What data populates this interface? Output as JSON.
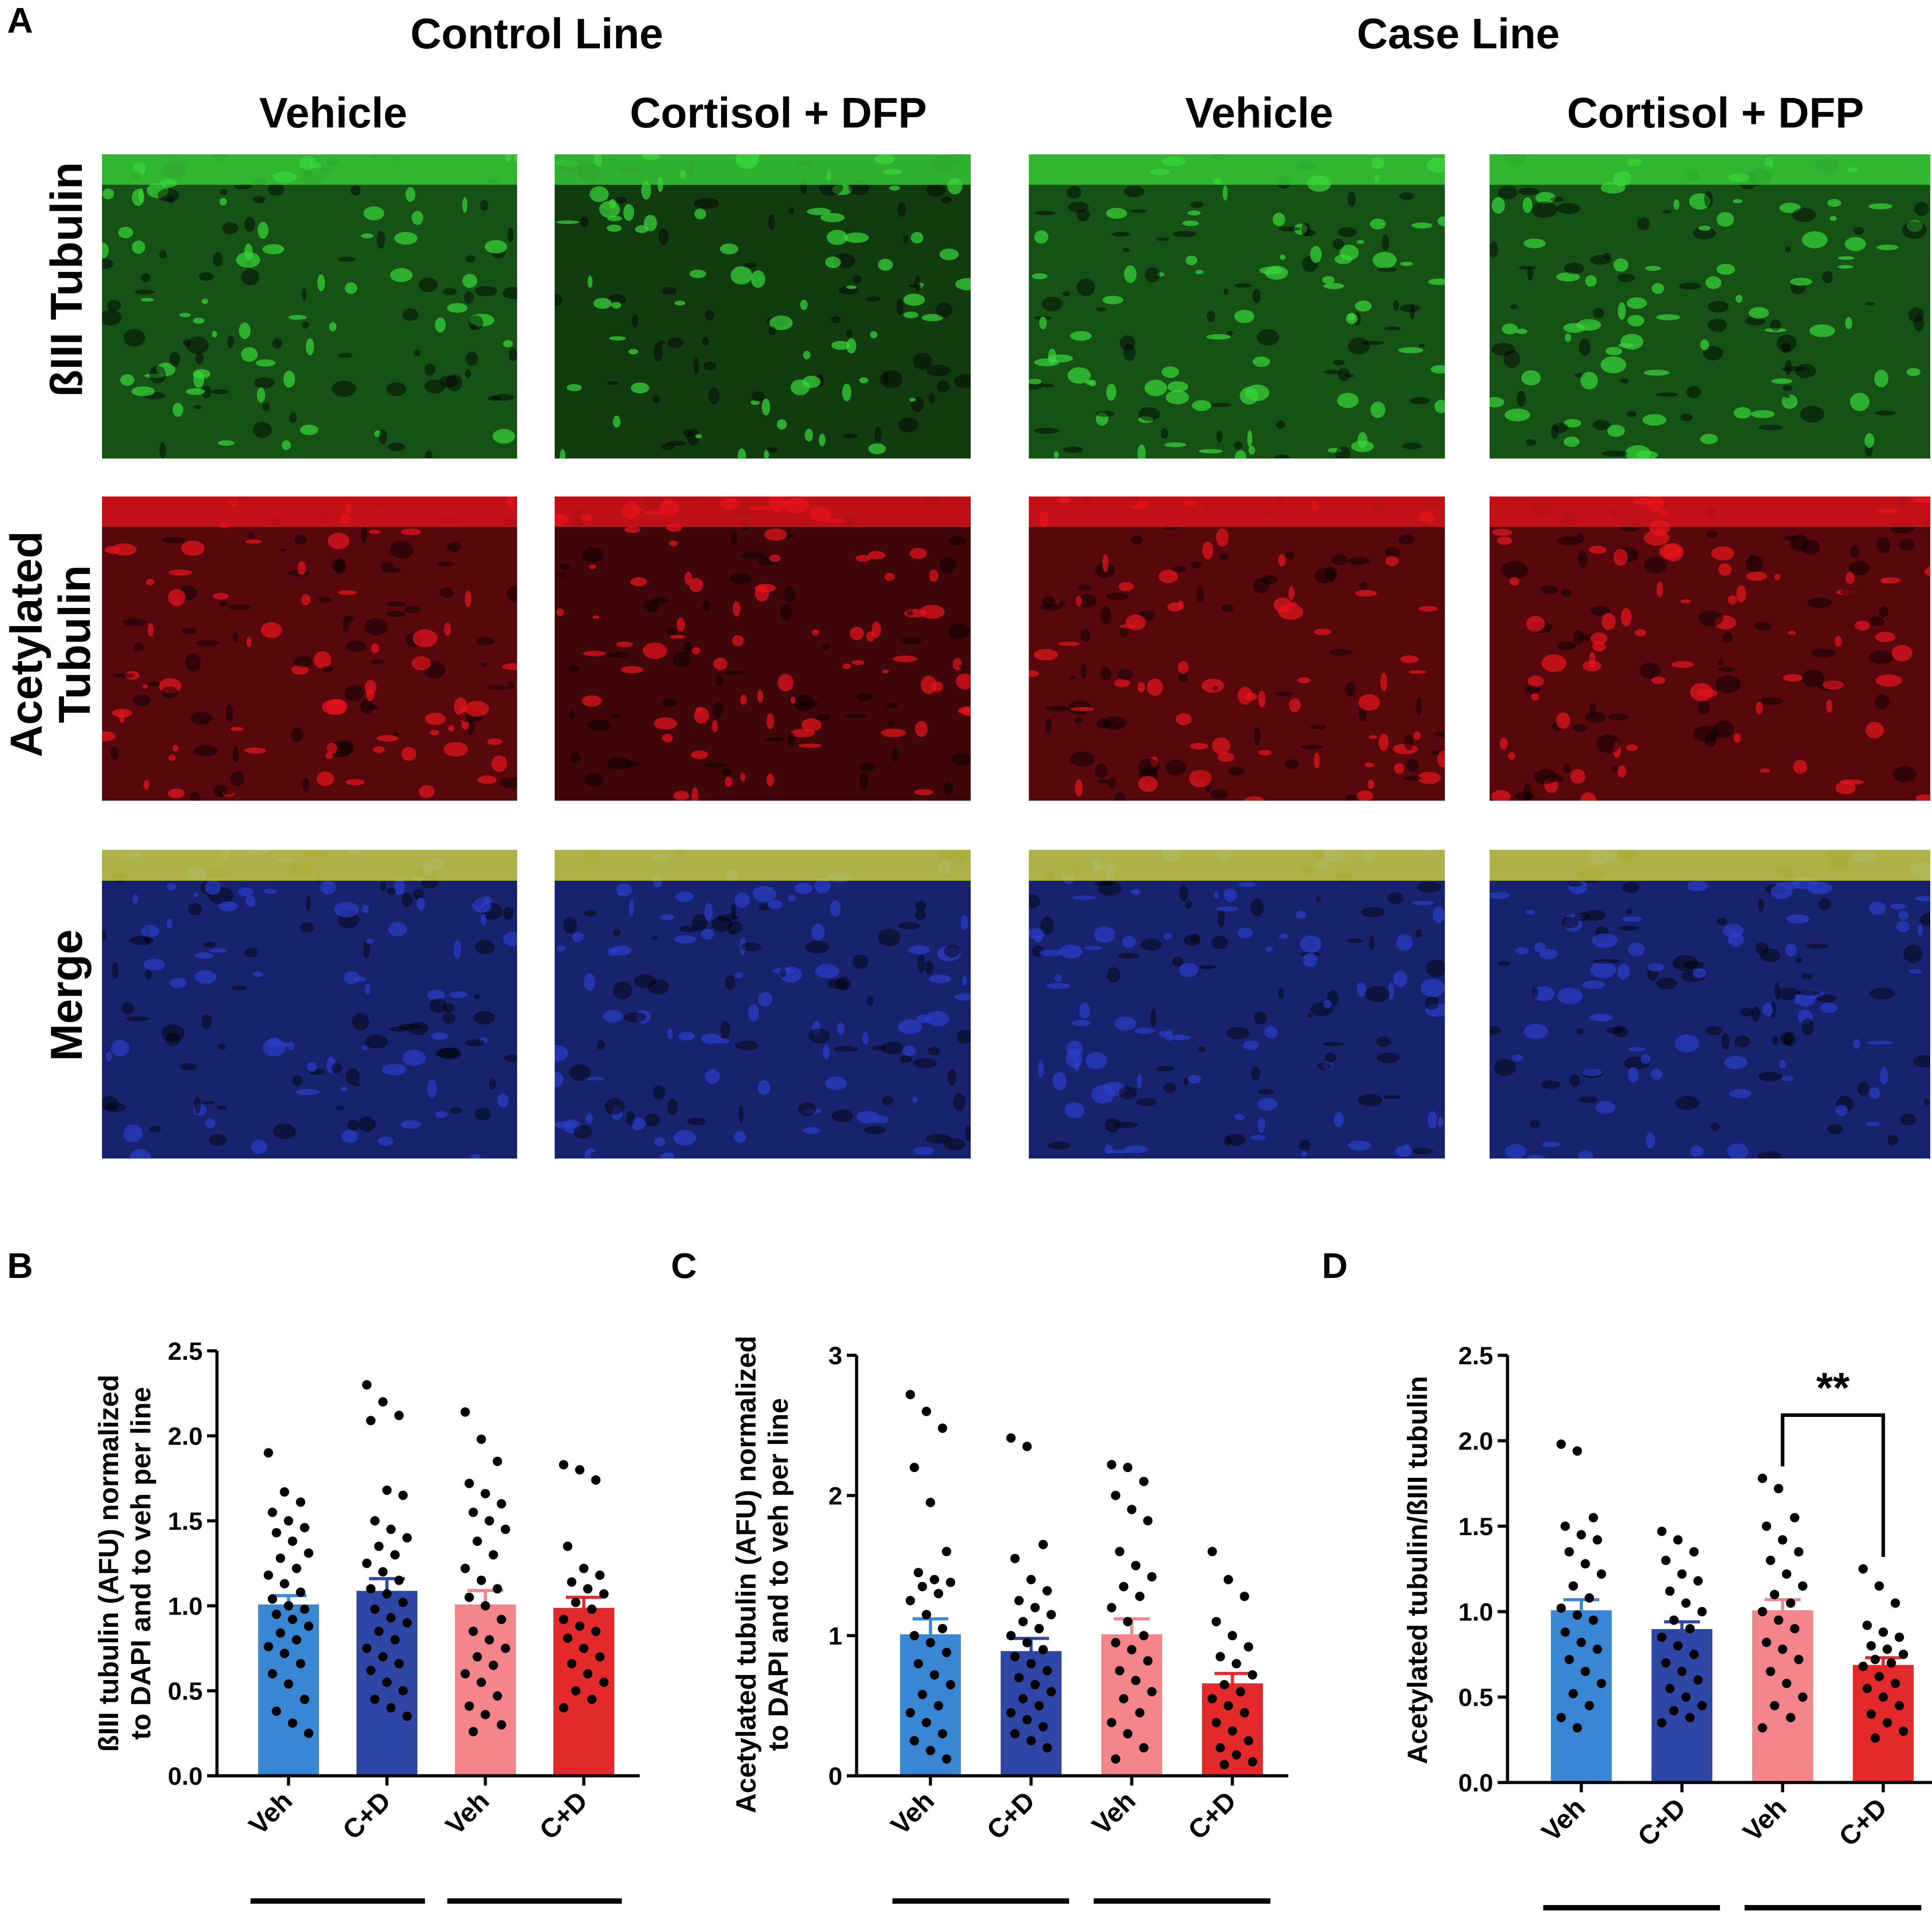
{
  "panel_letters": [
    "A",
    "B",
    "C",
    "D"
  ],
  "panel_a": {
    "group_titles": [
      "Control Line",
      "Case Line"
    ],
    "column_titles": [
      "Vehicle",
      "Cortisol + DFP",
      "Vehicle",
      "Cortisol + DFP"
    ],
    "row_labels": [
      "ßIII Tubulin",
      "Acetylated\nTubulin",
      "Merge"
    ],
    "image_tints": {
      "row1": "#39d83a",
      "row2": "#e8141c",
      "row3": [
        "#2a3fc8",
        "#e2e23a"
      ]
    }
  },
  "chart_data": [
    {
      "panel": "B",
      "type": "bar",
      "ylabel": "ßIII tubulin (AFU) normalized\nto DAPI and to veh per line",
      "categories": [
        "Veh",
        "C+D",
        "Veh",
        "C+D"
      ],
      "groups": [
        {
          "label": "Control",
          "categories": [
            0,
            1
          ]
        },
        {
          "label": "Case",
          "categories": [
            2,
            3
          ]
        }
      ],
      "values": [
        1.0,
        1.08,
        1.0,
        0.98
      ],
      "sem": [
        0.06,
        0.08,
        0.09,
        0.07
      ],
      "colors": [
        "#3a87d4",
        "#2e47a5",
        "#f4858a",
        "#e4292b"
      ],
      "ylim": [
        0,
        2.5
      ],
      "yticks": [
        "0.0",
        "0.5",
        "1.0",
        "1.5",
        "2.0",
        "2.5"
      ],
      "points": [
        [
          1.9,
          1.67,
          1.61,
          1.55,
          1.5,
          1.46,
          1.43,
          1.38,
          1.31,
          1.28,
          1.22,
          1.18,
          1.13,
          1.08,
          1.04,
          1.0,
          0.98,
          0.95,
          0.92,
          0.88,
          0.84,
          0.8,
          0.76,
          0.72,
          0.66,
          0.6,
          0.54,
          0.45,
          0.38,
          0.31,
          0.25
        ],
        [
          2.3,
          2.2,
          2.12,
          2.09,
          1.68,
          1.65,
          1.5,
          1.45,
          1.4,
          1.35,
          1.3,
          1.25,
          1.2,
          1.15,
          1.1,
          1.07,
          1.02,
          0.98,
          0.93,
          0.9,
          0.85,
          0.8,
          0.75,
          0.7,
          0.66,
          0.62,
          0.55,
          0.5,
          0.45,
          0.4,
          0.35
        ],
        [
          2.14,
          1.98,
          1.85,
          1.72,
          1.66,
          1.6,
          1.55,
          1.5,
          1.45,
          1.38,
          1.3,
          1.22,
          1.15,
          1.1,
          1.05,
          1.0,
          0.92,
          0.85,
          0.8,
          0.75,
          0.7,
          0.65,
          0.6,
          0.55,
          0.47,
          0.41,
          0.36,
          0.3,
          0.26
        ],
        [
          1.83,
          1.8,
          1.74,
          1.35,
          1.22,
          1.18,
          1.14,
          1.1,
          1.07,
          1.02,
          0.98,
          0.92,
          0.88,
          0.85,
          0.81,
          0.75,
          0.7,
          0.66,
          0.6,
          0.55,
          0.5,
          0.45,
          0.4
        ]
      ]
    },
    {
      "panel": "C",
      "type": "bar",
      "ylabel": "Acetylated tubulin (AFU) normalized\nto DAPI and to veh per line",
      "categories": [
        "Veh",
        "C+D",
        "Veh",
        "C+D"
      ],
      "groups": [
        {
          "label": "Control",
          "categories": [
            0,
            1
          ]
        },
        {
          "label": "Case",
          "categories": [
            2,
            3
          ]
        }
      ],
      "values": [
        1.0,
        0.88,
        1.0,
        0.65
      ],
      "sem": [
        0.12,
        0.1,
        0.12,
        0.08
      ],
      "colors": [
        "#3a87d4",
        "#2e47a5",
        "#f4858a",
        "#e4292b"
      ],
      "ylim": [
        0,
        3
      ],
      "yticks": [
        "0",
        "1",
        "2",
        "3"
      ],
      "points": [
        [
          2.72,
          2.6,
          2.48,
          2.2,
          1.95,
          1.6,
          1.45,
          1.4,
          1.38,
          1.35,
          1.3,
          1.25,
          1.15,
          1.05,
          1.0,
          0.95,
          0.88,
          0.8,
          0.72,
          0.65,
          0.58,
          0.5,
          0.45,
          0.38,
          0.3,
          0.25,
          0.18,
          0.12
        ],
        [
          2.41,
          2.35,
          1.65,
          1.55,
          1.4,
          1.32,
          1.25,
          1.2,
          1.15,
          1.1,
          1.05,
          1.0,
          0.95,
          0.9,
          0.85,
          0.8,
          0.75,
          0.7,
          0.65,
          0.6,
          0.55,
          0.5,
          0.45,
          0.4,
          0.35,
          0.3,
          0.25,
          0.2
        ],
        [
          2.22,
          2.2,
          2.1,
          2.0,
          1.9,
          1.82,
          1.6,
          1.5,
          1.42,
          1.35,
          1.28,
          1.2,
          1.1,
          1.0,
          0.95,
          0.9,
          0.82,
          0.75,
          0.68,
          0.6,
          0.55,
          0.45,
          0.38,
          0.3,
          0.2,
          0.12
        ],
        [
          1.6,
          1.4,
          1.28,
          1.1,
          1.0,
          0.92,
          0.85,
          0.8,
          0.72,
          0.65,
          0.6,
          0.55,
          0.5,
          0.45,
          0.38,
          0.32,
          0.25,
          0.2,
          0.15,
          0.1,
          0.08
        ]
      ]
    },
    {
      "panel": "D",
      "type": "bar",
      "ylabel": "Acetylated tubulin/ßIII tubulin",
      "categories": [
        "Veh",
        "C+D",
        "Veh",
        "C+D"
      ],
      "groups": [
        {
          "label": "Control",
          "categories": [
            0,
            1
          ]
        },
        {
          "label": "Case",
          "categories": [
            2,
            3
          ]
        }
      ],
      "values": [
        1.0,
        0.89,
        1.0,
        0.68
      ],
      "sem": [
        0.07,
        0.05,
        0.07,
        0.05
      ],
      "colors": [
        "#3a87d4",
        "#2e47a5",
        "#f4858a",
        "#e4292b"
      ],
      "ylim": [
        0,
        2.5
      ],
      "yticks": [
        "0.0",
        "0.5",
        "1.0",
        "1.5",
        "2.0",
        "2.5"
      ],
      "significance": {
        "between": [
          2,
          3
        ],
        "label": "**"
      },
      "points": [
        [
          1.98,
          1.94,
          1.55,
          1.5,
          1.45,
          1.42,
          1.35,
          1.28,
          1.22,
          1.15,
          1.08,
          1.02,
          0.98,
          0.95,
          0.88,
          0.82,
          0.78,
          0.72,
          0.65,
          0.58,
          0.52,
          0.45,
          0.38,
          0.32
        ],
        [
          1.47,
          1.42,
          1.35,
          1.3,
          1.22,
          1.18,
          1.12,
          1.05,
          1.0,
          0.95,
          0.9,
          0.85,
          0.8,
          0.75,
          0.7,
          0.65,
          0.6,
          0.55,
          0.5,
          0.45,
          0.42,
          0.38,
          0.35
        ],
        [
          1.78,
          1.72,
          1.55,
          1.5,
          1.42,
          1.35,
          1.3,
          1.22,
          1.15,
          1.1,
          1.05,
          1.0,
          0.95,
          0.9,
          0.82,
          0.78,
          0.72,
          0.65,
          0.58,
          0.5,
          0.45,
          0.38,
          0.32
        ],
        [
          1.25,
          1.15,
          1.05,
          0.92,
          0.88,
          0.85,
          0.8,
          0.78,
          0.75,
          0.72,
          0.7,
          0.68,
          0.62,
          0.58,
          0.55,
          0.5,
          0.45,
          0.4,
          0.35,
          0.3,
          0.26
        ]
      ]
    }
  ]
}
